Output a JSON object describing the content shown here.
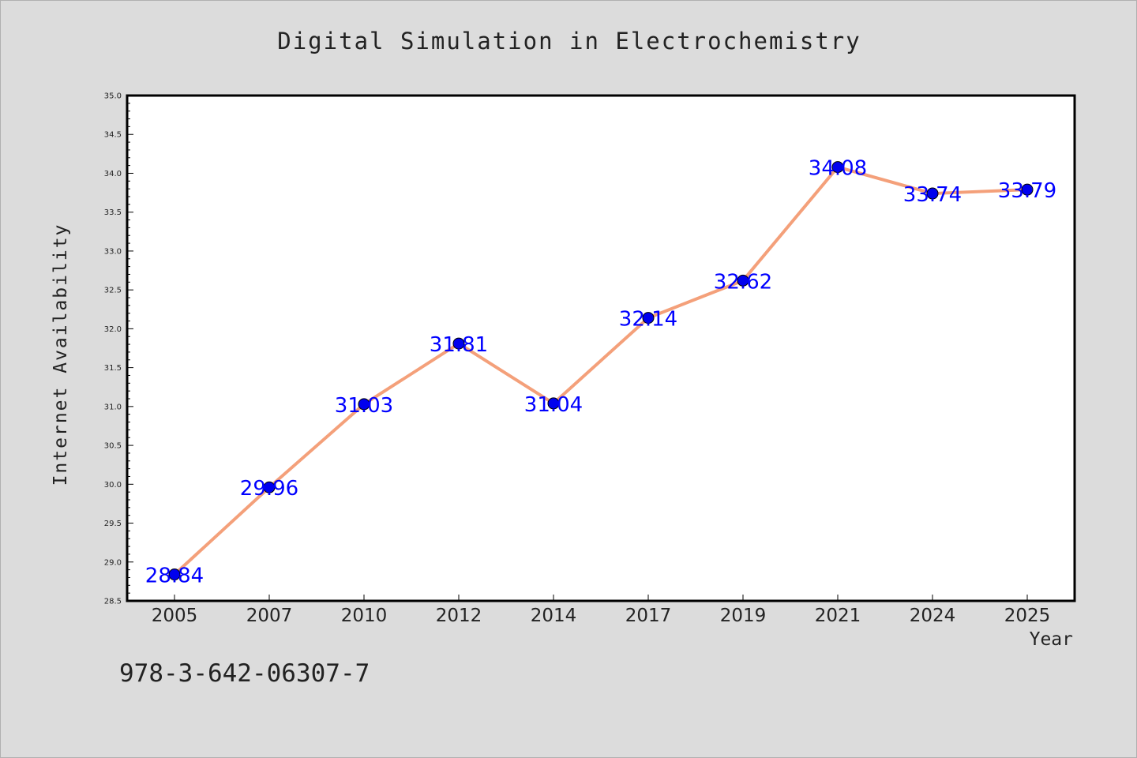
{
  "chart_data": {
    "type": "line",
    "title": "Digital Simulation in Electrochemistry",
    "xlabel": "Year",
    "ylabel": "Internet Availability",
    "categories": [
      "2005",
      "2007",
      "2010",
      "2012",
      "2014",
      "2017",
      "2019",
      "2021",
      "2024",
      "2025"
    ],
    "series": [
      {
        "values": [
          28.84,
          29.96,
          31.03,
          31.81,
          31.04,
          32.14,
          32.62,
          34.08,
          33.74,
          33.79
        ],
        "labels": [
          "28.84",
          "29.96",
          "31.03",
          "31.81",
          "31.04",
          "32.14",
          "32.62",
          "34.08",
          "33.74",
          "33.79"
        ]
      }
    ],
    "ylim": [
      28.5,
      35.0
    ],
    "yticks": [
      "28.5",
      "29.0",
      "29.5",
      "30.0",
      "30.5",
      "31.0",
      "31.5",
      "32.0",
      "32.5",
      "33.0",
      "33.5",
      "34.0",
      "34.5",
      "35.0"
    ],
    "ytick_values": [
      28.5,
      29.0,
      29.5,
      30.0,
      30.5,
      31.0,
      31.5,
      32.0,
      32.5,
      33.0,
      33.5,
      34.0,
      34.5,
      35.0
    ],
    "grid": false,
    "line_color": "#f4a07a",
    "marker_color": "#0000ee",
    "label_color": "#0000ff"
  },
  "footer": {
    "isbn": "978-3-642-06307-7"
  }
}
